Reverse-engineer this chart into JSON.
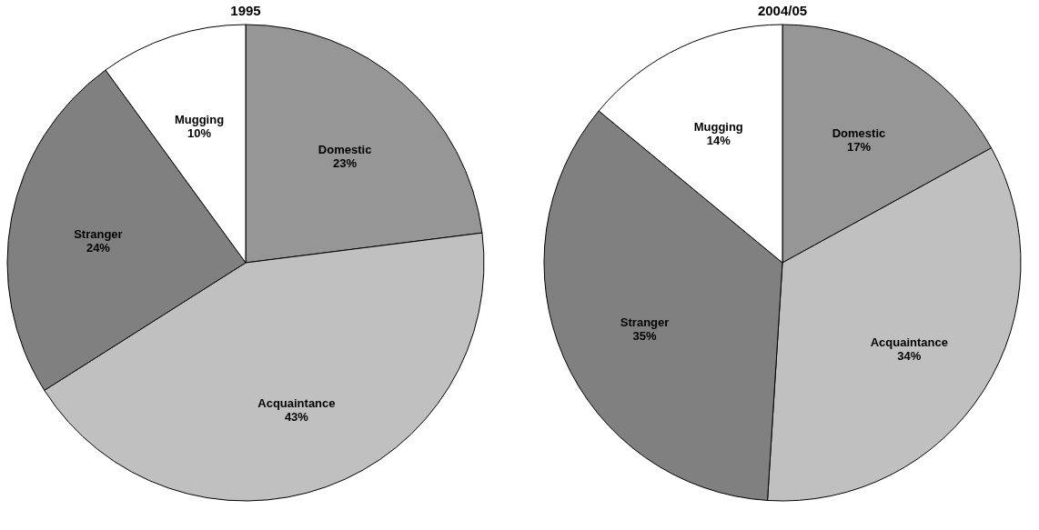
{
  "chart_data": [
    {
      "type": "pie",
      "title": "1995",
      "categories": [
        "Domestic",
        "Acquaintance",
        "Stranger",
        "Mugging"
      ],
      "values": [
        23,
        43,
        24,
        10
      ],
      "value_labels": [
        "23%",
        "43%",
        "24%",
        "10%"
      ],
      "colors": [
        "#969696",
        "#c0c0c0",
        "#808080",
        "#ffffff"
      ],
      "legend": false
    },
    {
      "type": "pie",
      "title": "2004/05",
      "categories": [
        "Domestic",
        "Acquaintance",
        "Stranger",
        "Mugging"
      ],
      "values": [
        17,
        34,
        35,
        14
      ],
      "value_labels": [
        "17%",
        "34%",
        "35%",
        "14%"
      ],
      "colors": [
        "#969696",
        "#c0c0c0",
        "#808080",
        "#ffffff"
      ],
      "legend": false
    }
  ]
}
